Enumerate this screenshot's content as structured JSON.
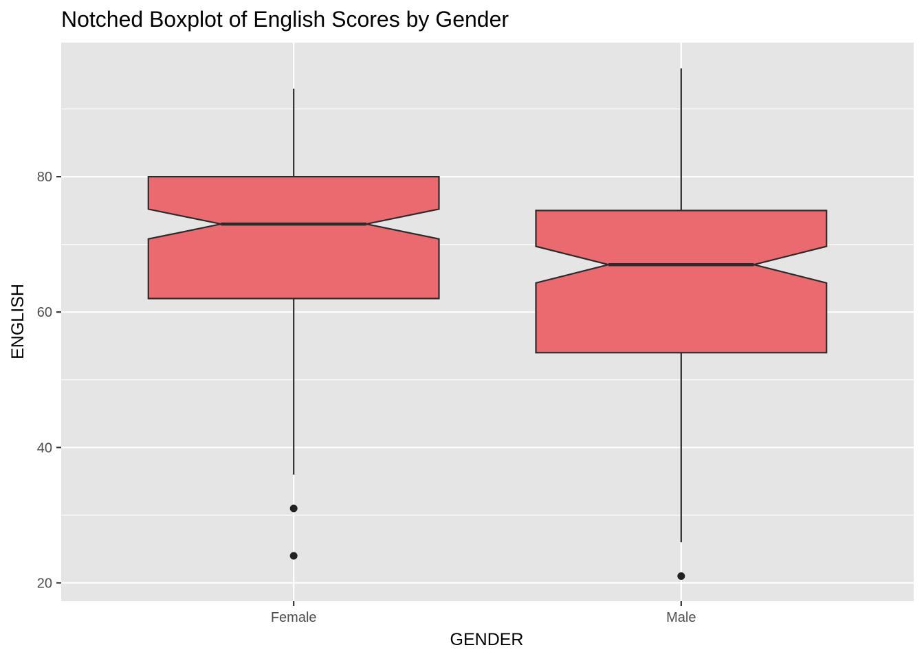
{
  "chart_data": {
    "type": "boxplot",
    "title": "Notched Boxplot of English Scores by Gender",
    "xlabel": "GENDER",
    "ylabel": "ENGLISH",
    "categories": [
      "Female",
      "Male"
    ],
    "ylim": [
      17.3,
      99.8
    ],
    "y_ticks": [
      20,
      40,
      60,
      80
    ],
    "grid": true,
    "notched": true,
    "colors": {
      "panel_background": "#e5e5e5",
      "grid": "#ffffff",
      "box_fill": "#ea6a6f",
      "box_outline": "#2b2b2b",
      "outlier": "#222222"
    },
    "boxes": [
      {
        "category": "Female",
        "whisker_low": 36,
        "q1": 62,
        "notch_low": 70.8,
        "median": 73,
        "notch_high": 75.2,
        "q3": 80,
        "whisker_high": 93,
        "outliers": [
          31,
          24
        ]
      },
      {
        "category": "Male",
        "whisker_low": 26,
        "q1": 54,
        "notch_low": 64.3,
        "median": 67,
        "notch_high": 69.7,
        "q3": 75,
        "whisker_high": 96,
        "outliers": [
          21
        ]
      }
    ]
  }
}
